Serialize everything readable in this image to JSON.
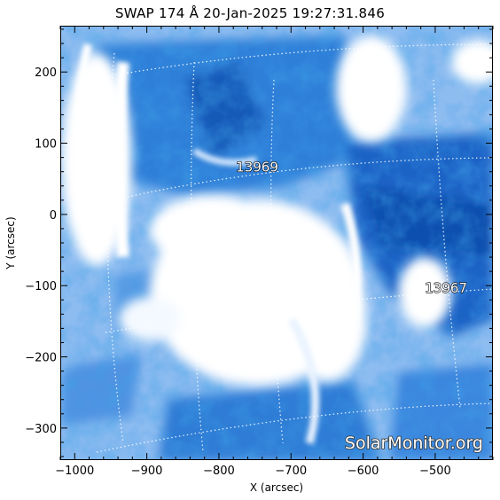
{
  "title": "SWAP 174 Å 20-Jan-2025 19:27:31.846",
  "axes": {
    "xlabel": "X (arcsec)",
    "ylabel": "Y (arcsec)",
    "x_range": [
      -1020,
      -420
    ],
    "y_range": [
      -345,
      265
    ],
    "x_ticks": [
      -1000,
      -900,
      -800,
      -700,
      -600,
      -500
    ],
    "y_ticks": [
      200,
      100,
      0,
      -100,
      -200,
      -300
    ],
    "x_tick_labels": [
      "−1000",
      "−900",
      "−800",
      "−700",
      "−600",
      "−500"
    ],
    "y_tick_labels": [
      "200",
      "100",
      "0",
      "−100",
      "−200",
      "−300"
    ]
  },
  "regions": [
    {
      "label": "13969",
      "x": -747,
      "y": 60
    },
    {
      "label": "13967",
      "x": -485,
      "y": -110
    }
  ],
  "watermark": "SolarMonitor.org",
  "colors": {
    "deep_blue": "#0a5fc4",
    "mid_blue": "#3b86de",
    "light_blue": "#9cc6f2",
    "highlight": "#ffffff"
  }
}
